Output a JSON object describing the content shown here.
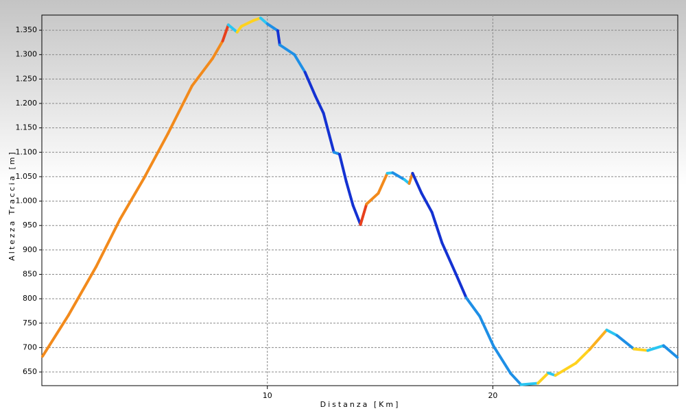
{
  "chart_data": {
    "type": "line",
    "xlabel": "Distanza [Km]",
    "ylabel": "Altezza Traccia [m]",
    "x": [
      0.03,
      1.19,
      2.4,
      3.47,
      4.53,
      5.59,
      6.66,
      7.57,
      8.02,
      8.27,
      8.66,
      8.85,
      9.39,
      9.7,
      10.0,
      10.46,
      10.55,
      11.2,
      11.67,
      12.13,
      12.49,
      12.95,
      13.2,
      13.5,
      13.8,
      14.13,
      14.4,
      14.92,
      15.32,
      15.56,
      16.08,
      16.29,
      16.44,
      16.84,
      17.3,
      17.75,
      18.36,
      18.82,
      19.42,
      20.03,
      20.79,
      21.25,
      22.0,
      22.46,
      22.77,
      23.68,
      24.29,
      25.05,
      25.5,
      26.26,
      26.87,
      27.57,
      28.18
    ],
    "values": [
      682,
      767,
      865,
      963,
      1047,
      1138,
      1236,
      1292,
      1328,
      1361,
      1346,
      1358,
      1370,
      1375,
      1363,
      1349,
      1320,
      1300,
      1264,
      1215,
      1180,
      1100,
      1096,
      1040,
      991,
      952,
      994,
      1016,
      1057,
      1058,
      1044,
      1036,
      1057,
      1016,
      977,
      914,
      851,
      802,
      764,
      703,
      647,
      624,
      627,
      648,
      643,
      668,
      696,
      736,
      725,
      697,
      694,
      704,
      680
    ],
    "segment_colors": [
      "#f28a1c",
      "#f28a1c",
      "#f28a1c",
      "#f28a1c",
      "#f28a1c",
      "#f28a1c",
      "#f28a1c",
      "#f28a1c",
      "#e8401c",
      "#2ac6f2",
      "#ffd21e",
      "#ffd21e",
      "#ffd21e",
      "#2ac6f2",
      "#1e8fe6",
      "#1432d2",
      "#1e8fe6",
      "#1e8fe6",
      "#1432d2",
      "#1432d2",
      "#1432d2",
      "#1e8fe6",
      "#1432d2",
      "#1432d2",
      "#1432d2",
      "#e8401c",
      "#f28a1c",
      "#f28a1c",
      "#2ac6f2",
      "#1e8fe6",
      "#2ac6f2",
      "#f28a1c",
      "#1432d2",
      "#1432d2",
      "#1432d2",
      "#1432d2",
      "#1432d2",
      "#1e8fe6",
      "#1e8fe6",
      "#1e8fe6",
      "#1e8fe6",
      "#2ac6f2",
      "#ffd21e",
      "#2ac6f2",
      "#ffd21e",
      "#ffd21e",
      "#fbb01e",
      "#2ac6f2",
      "#1e8fe6",
      "#ffd21e",
      "#2ac6f2",
      "#1e8fe6"
    ],
    "xlim": [
      0,
      28.2
    ],
    "ylim": [
      622,
      1381
    ],
    "xticks": [
      10,
      20
    ],
    "yticks": [
      {
        "value": 650,
        "label": "650"
      },
      {
        "value": 700,
        "label": "700"
      },
      {
        "value": 750,
        "label": "750"
      },
      {
        "value": 800,
        "label": "800"
      },
      {
        "value": 850,
        "label": "850"
      },
      {
        "value": 900,
        "label": "900"
      },
      {
        "value": 950,
        "label": "950"
      },
      {
        "value": 1000,
        "label": "1.000"
      },
      {
        "value": 1050,
        "label": "1.050"
      },
      {
        "value": 1100,
        "label": "1.100"
      },
      {
        "value": 1150,
        "label": "1.150"
      },
      {
        "value": 1200,
        "label": "1.200"
      },
      {
        "value": 1250,
        "label": "1.250"
      },
      {
        "value": 1300,
        "label": "1.300"
      },
      {
        "value": 1350,
        "label": "1.350"
      }
    ],
    "grid": true
  }
}
